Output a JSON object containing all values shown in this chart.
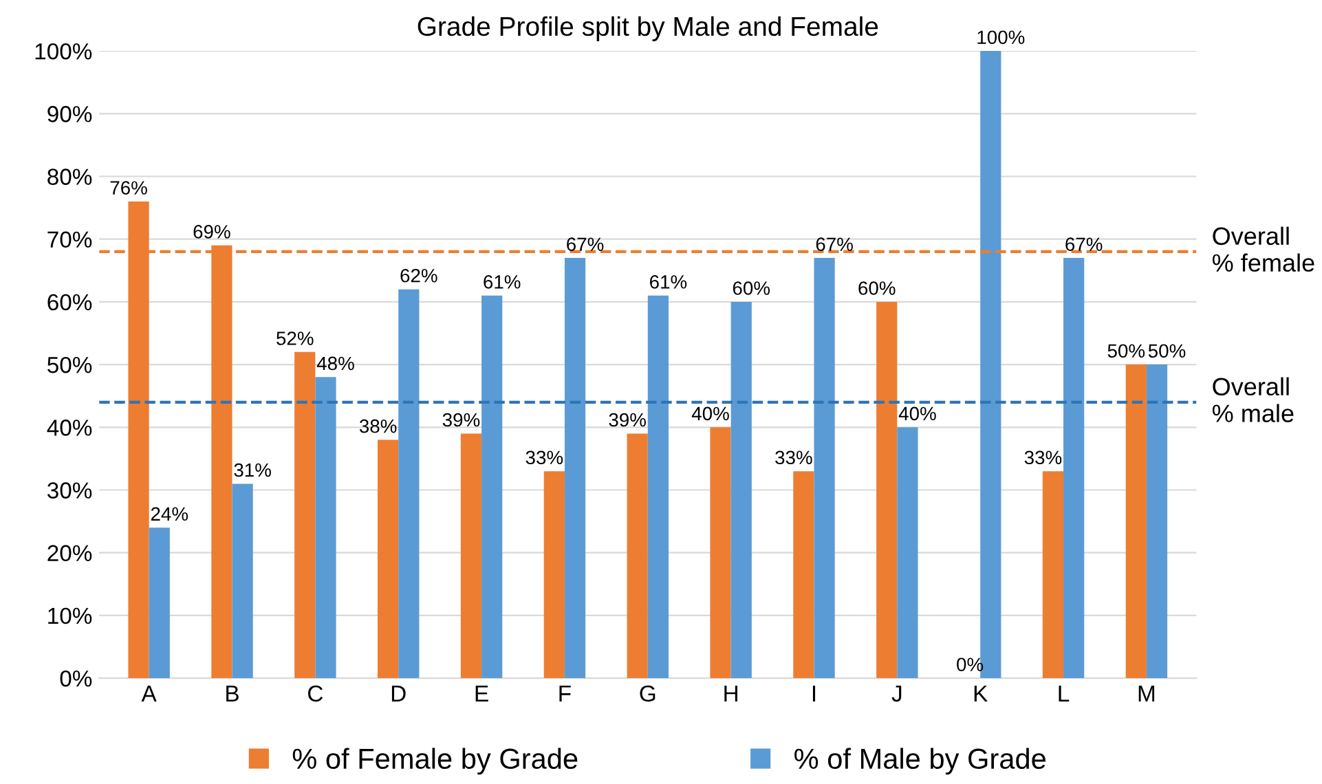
{
  "chart_data": {
    "type": "bar",
    "title": "Grade Profile split by Male and Female",
    "categories": [
      "A",
      "B",
      "C",
      "D",
      "E",
      "F",
      "G",
      "H",
      "I",
      "J",
      "K",
      "L",
      "M"
    ],
    "series": [
      {
        "name": "% of Female by Grade",
        "color": "#ed7d31",
        "values": [
          76,
          69,
          52,
          38,
          39,
          33,
          39,
          40,
          33,
          60,
          0,
          33,
          50
        ],
        "value_labels": [
          "76%",
          "69%",
          "52%",
          "38%",
          "39%",
          "33%",
          "39%",
          "40%",
          "33%",
          "60%",
          "0%",
          "33%",
          "50%"
        ]
      },
      {
        "name": "% of Male by Grade",
        "color": "#5b9bd5",
        "values": [
          24,
          31,
          48,
          62,
          61,
          67,
          61,
          60,
          67,
          40,
          100,
          67,
          50
        ],
        "value_labels": [
          "24%",
          "31%",
          "48%",
          "62%",
          "61%",
          "67%",
          "61%",
          "60%",
          "67%",
          "40%",
          "100%",
          "67%",
          "50%"
        ]
      }
    ],
    "ylim": [
      0,
      100
    ],
    "yticks": [
      {
        "value": 0,
        "label": "0%"
      },
      {
        "value": 10,
        "label": "10%"
      },
      {
        "value": 20,
        "label": "20%"
      },
      {
        "value": 30,
        "label": "30%"
      },
      {
        "value": 40,
        "label": "40%"
      },
      {
        "value": 50,
        "label": "50%"
      },
      {
        "value": 60,
        "label": "60%"
      },
      {
        "value": 70,
        "label": "70%"
      },
      {
        "value": 80,
        "label": "80%"
      },
      {
        "value": 90,
        "label": "90%"
      },
      {
        "value": 100,
        "label": "100%"
      }
    ],
    "ref_lines": [
      {
        "axis": "y",
        "value": 68,
        "label": "Overall\n% female",
        "color": "#ed7d31",
        "line_style": "dashed"
      },
      {
        "axis": "y",
        "value": 44,
        "label": "Overall\n% male",
        "color": "#2e75b6",
        "line_style": "dashed"
      }
    ],
    "grid": "y",
    "legend": "bottom"
  }
}
